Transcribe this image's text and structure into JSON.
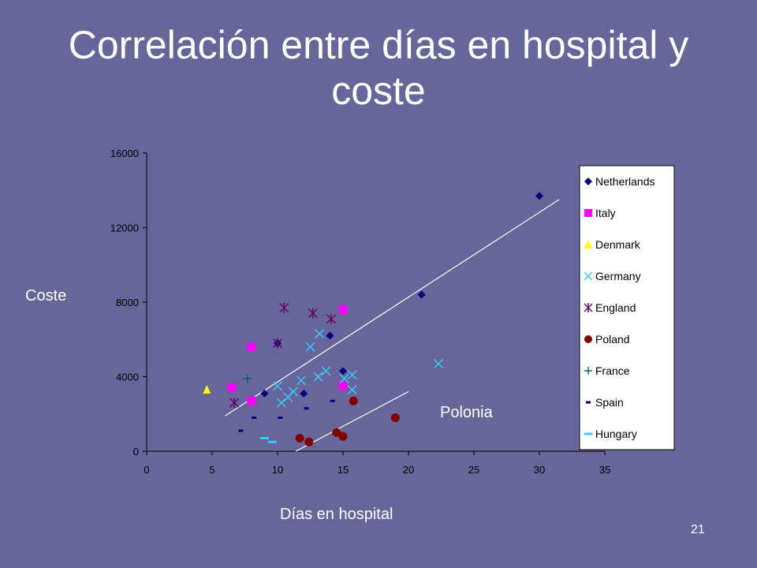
{
  "slide": {
    "title_line1": "Correlación entre días en hospital y",
    "title_line2": "coste",
    "y_label": "Coste",
    "x_label": "Días en hospital",
    "annotation": "Polonia",
    "slide_number": "21"
  },
  "colors": {
    "background": "#66669a",
    "text": "#ffffff",
    "axis": "#000000",
    "legend_bg": "#ffffff"
  },
  "chart_data": {
    "type": "scatter",
    "xlim": [
      0,
      35
    ],
    "ylim": [
      0,
      16000
    ],
    "x_ticks": [
      0,
      5,
      10,
      15,
      20,
      25,
      30,
      35
    ],
    "y_ticks": [
      0,
      4000,
      8000,
      12000,
      16000
    ],
    "grid": false,
    "legend": "right",
    "series": [
      {
        "name": "Netherlands",
        "marker": "diamond",
        "color": "#000080",
        "points": [
          [
            30,
            13700
          ],
          [
            21,
            8400
          ],
          [
            10,
            5800
          ],
          [
            14,
            6200
          ],
          [
            15,
            4300
          ],
          [
            9,
            3100
          ],
          [
            12,
            3100
          ]
        ]
      },
      {
        "name": "Italy",
        "marker": "square",
        "color": "#ff00ff",
        "points": [
          [
            15,
            7600
          ],
          [
            8,
            5600
          ],
          [
            6.5,
            3400
          ],
          [
            8,
            2700
          ],
          [
            15,
            3500
          ]
        ]
      },
      {
        "name": "Denmark",
        "marker": "triangle",
        "color": "#ffff00",
        "points": [
          [
            4.6,
            3300
          ]
        ]
      },
      {
        "name": "Germany",
        "marker": "x",
        "color": "#33ccff",
        "points": [
          [
            22.3,
            4700
          ],
          [
            13.2,
            6300
          ],
          [
            12.5,
            5600
          ],
          [
            15.7,
            4100
          ],
          [
            15.1,
            3900
          ],
          [
            13.7,
            4300
          ],
          [
            13.1,
            4000
          ],
          [
            11.8,
            3800
          ],
          [
            10,
            3500
          ],
          [
            11.2,
            3200
          ],
          [
            10.8,
            2900
          ],
          [
            10.3,
            2600
          ],
          [
            15.7,
            3300
          ]
        ]
      },
      {
        "name": "England",
        "marker": "star",
        "color": "#660066",
        "points": [
          [
            10.5,
            7700
          ],
          [
            12.7,
            7400
          ],
          [
            14.1,
            7100
          ],
          [
            10,
            5800
          ],
          [
            6.7,
            2600
          ]
        ]
      },
      {
        "name": "Poland",
        "marker": "circle",
        "color": "#800000",
        "points": [
          [
            15.8,
            2700
          ],
          [
            19,
            1800
          ],
          [
            14.5,
            1000
          ],
          [
            15,
            800
          ],
          [
            11.7,
            700
          ],
          [
            12.4,
            500
          ]
        ]
      },
      {
        "name": "France",
        "marker": "plus",
        "color": "#006666",
        "points": [
          [
            7.7,
            3900
          ]
        ]
      },
      {
        "name": "Spain",
        "marker": "dash",
        "color": "#000080",
        "points": [
          [
            7.2,
            1100
          ],
          [
            8.2,
            1800
          ],
          [
            10.2,
            1800
          ],
          [
            12.2,
            2300
          ],
          [
            14.2,
            2700
          ]
        ]
      },
      {
        "name": "Hungary",
        "marker": "wide-dash",
        "color": "#33ccff",
        "points": [
          [
            9,
            700
          ],
          [
            9.6,
            500
          ]
        ]
      }
    ],
    "trend_lines": [
      {
        "from": [
          6,
          1900
        ],
        "to": [
          31.5,
          13500
        ]
      },
      {
        "from": [
          11.4,
          0
        ],
        "to": [
          20,
          3200
        ]
      }
    ]
  }
}
